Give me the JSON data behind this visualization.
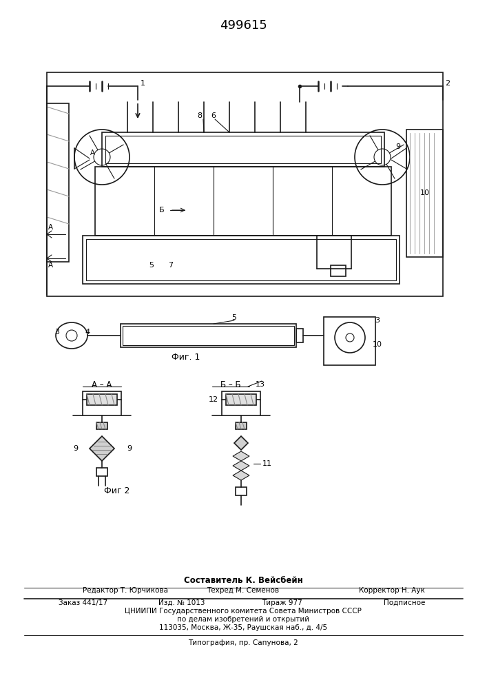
{
  "title": "499615",
  "title_fontsize": 13,
  "bg_color": "#ffffff",
  "line_color": "#1a1a1a",
  "footer": {
    "sestavitel": "Составитель К. Вейсбейн",
    "redaktor": "Редактор Т. Юрчикова",
    "tehred": "Техред М. Семенов",
    "korrektor": "Корректор Н. Аук",
    "zakaz": "Заказ 441/17",
    "izd": "Изд. № 1013",
    "tiraж": "Тираж 977",
    "podpisnoe": "Подписное",
    "cniipи": "ЦНИИПИ Государственного комитета Совета Министров СССР",
    "podelam": "по делам изобретений и открытий",
    "address": "113035, Москва, Ж-35, Раушская наб., д. 4/5",
    "tipografia": "Типография, пр. Сапунова, 2"
  }
}
